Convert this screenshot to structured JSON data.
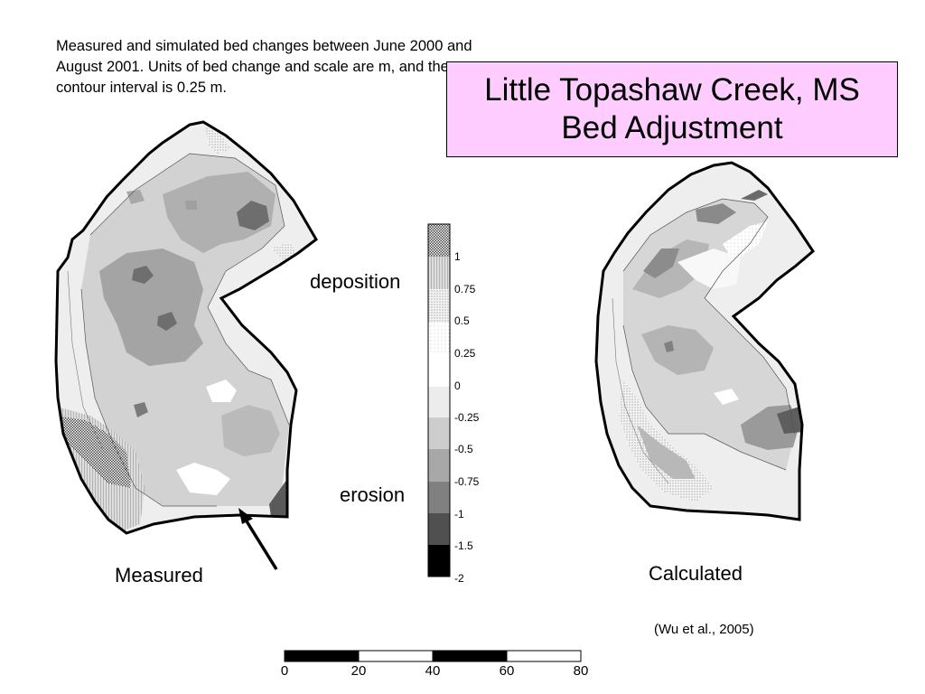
{
  "caption": "Measured and simulated bed changes between June 2000 and August 2001. Units of bed change and scale are m, and the contour interval is 0.25 m.",
  "title": {
    "line1": "Little Topashaw Creek, MS",
    "line2": "Bed Adjustment",
    "background": "#ffccff"
  },
  "maps": {
    "measured_label": "Measured",
    "calculated_label": "Calculated"
  },
  "legend": {
    "deposition_label": "deposition",
    "erosion_label": "erosion",
    "ticks": [
      "1",
      "0.75",
      "0.5",
      "0.25",
      "0",
      "-0.25",
      "-0.5",
      "-0.75",
      "-1",
      "-1.5",
      "-2"
    ]
  },
  "citation": "(Wu et al., 2005)",
  "scale_bar": {
    "ticks": [
      "0",
      "20",
      "40",
      "60",
      "80"
    ]
  }
}
